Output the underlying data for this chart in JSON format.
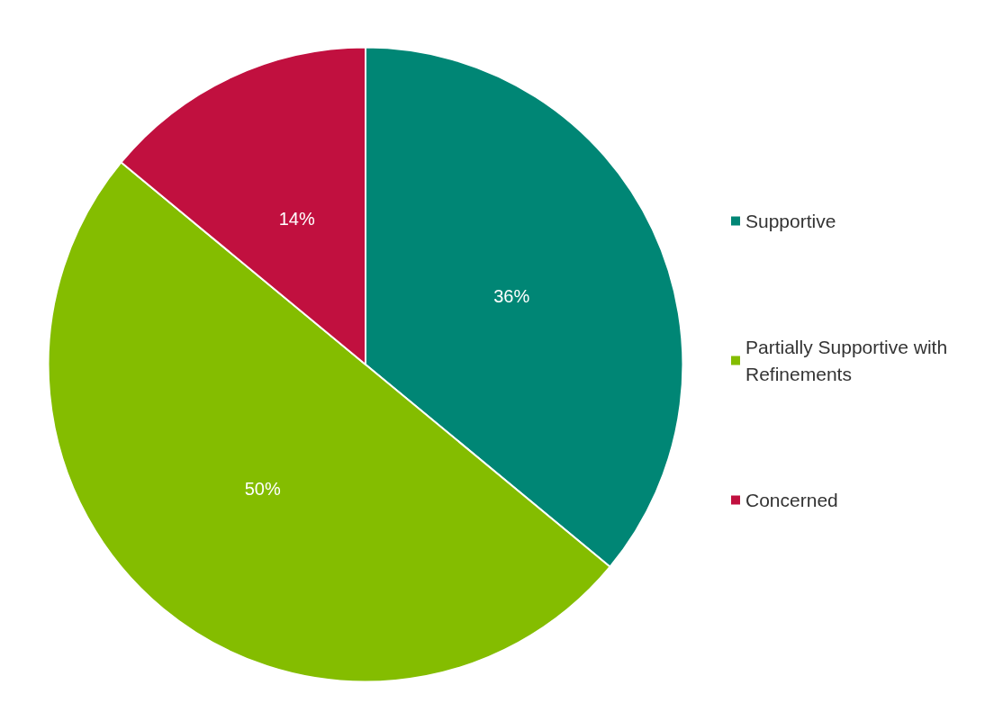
{
  "chart_data": {
    "type": "pie",
    "categories": [
      "Supportive",
      "Partially Supportive with Refinements",
      "Concerned"
    ],
    "values": [
      36,
      50,
      14
    ],
    "colors": [
      "#008675",
      "#84bd00",
      "#c1103f"
    ],
    "value_labels": [
      "36%",
      "50%",
      "14%"
    ],
    "legend": "right"
  }
}
